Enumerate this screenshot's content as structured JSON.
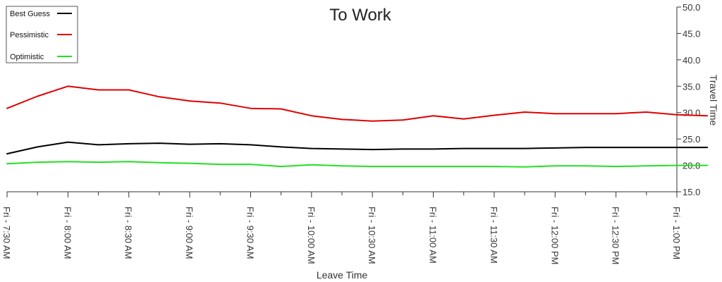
{
  "chart_data": {
    "type": "line",
    "title": "To Work",
    "xlabel": "Leave Time",
    "ylabel": "Travel Time",
    "x_ticks": [
      "Fri - 7:30 AM",
      "Fri - 8:00 AM",
      "Fri - 8:30 AM",
      "Fri - 9:00 AM",
      "Fri - 9:30 AM",
      "Fri - 10:00 AM",
      "Fri - 10:30 AM",
      "Fri - 11:00 AM",
      "Fri - 11:30 AM",
      "Fri - 12:00 PM",
      "Fri - 12:30 PM",
      "Fri - 1:00 PM"
    ],
    "y_ticks": [
      "15.0",
      "20.0",
      "25.0",
      "30.0",
      "35.0",
      "40.0",
      "45.0",
      "50.0"
    ],
    "ylim": [
      15,
      50
    ],
    "y_axis_side": "right",
    "legend_position": "top-left",
    "grid": false,
    "series": [
      {
        "name": "Best Guess",
        "color": "#000000",
        "values": [
          22.2,
          23.5,
          24.4,
          23.9,
          24.1,
          24.2,
          24.0,
          24.1,
          23.9,
          23.5,
          23.2,
          23.1,
          23.0,
          23.1,
          23.1,
          23.2,
          23.2,
          23.2,
          23.3,
          23.4,
          23.4,
          23.4,
          23.4,
          23.4
        ]
      },
      {
        "name": "Pessimistic",
        "color": "#e00000",
        "values": [
          30.8,
          33.1,
          35.0,
          34.3,
          34.3,
          33.0,
          32.2,
          31.8,
          30.8,
          30.7,
          29.4,
          28.7,
          28.4,
          28.6,
          29.4,
          28.8,
          29.5,
          30.1,
          29.8,
          29.8,
          29.8,
          30.1,
          29.6,
          29.4
        ]
      },
      {
        "name": "Optimistic",
        "color": "#22e022",
        "values": [
          20.3,
          20.6,
          20.7,
          20.6,
          20.7,
          20.5,
          20.4,
          20.2,
          20.2,
          19.8,
          20.1,
          19.9,
          19.8,
          19.8,
          19.8,
          19.8,
          19.8,
          19.7,
          19.9,
          19.9,
          19.8,
          19.9,
          20.0,
          20.0
        ]
      }
    ]
  }
}
